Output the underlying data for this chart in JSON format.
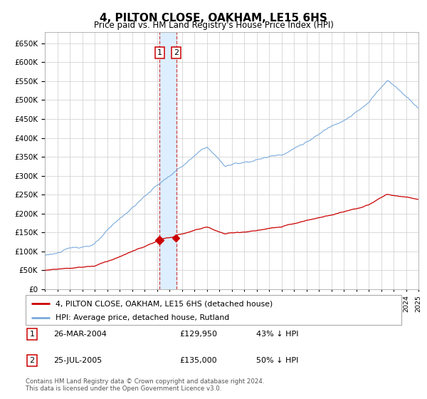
{
  "title": "4, PILTON CLOSE, OAKHAM, LE15 6HS",
  "subtitle": "Price paid vs. HM Land Registry's House Price Index (HPI)",
  "legend_line1": "4, PILTON CLOSE, OAKHAM, LE15 6HS (detached house)",
  "legend_line2": "HPI: Average price, detached house, Rutland",
  "transaction1_date": "26-MAR-2004",
  "transaction1_price": "£129,950",
  "transaction1_hpi": "43% ↓ HPI",
  "transaction2_date": "25-JUL-2005",
  "transaction2_price": "£135,000",
  "transaction2_hpi": "50% ↓ HPI",
  "footer": "Contains HM Land Registry data © Crown copyright and database right 2024.\nThis data is licensed under the Open Government Licence v3.0.",
  "red_color": "#cc0000",
  "blue_color": "#7aaadd",
  "vline_fill_color": "#ddeeff",
  "vline_dash_color": "#cc4444",
  "yticks": [
    0,
    50000,
    100000,
    150000,
    200000,
    250000,
    300000,
    350000,
    400000,
    450000,
    500000,
    550000,
    600000,
    650000
  ],
  "t1_year_float": 2004.21,
  "t2_year_float": 2005.55,
  "t1_price": 129950,
  "t2_price": 135000
}
